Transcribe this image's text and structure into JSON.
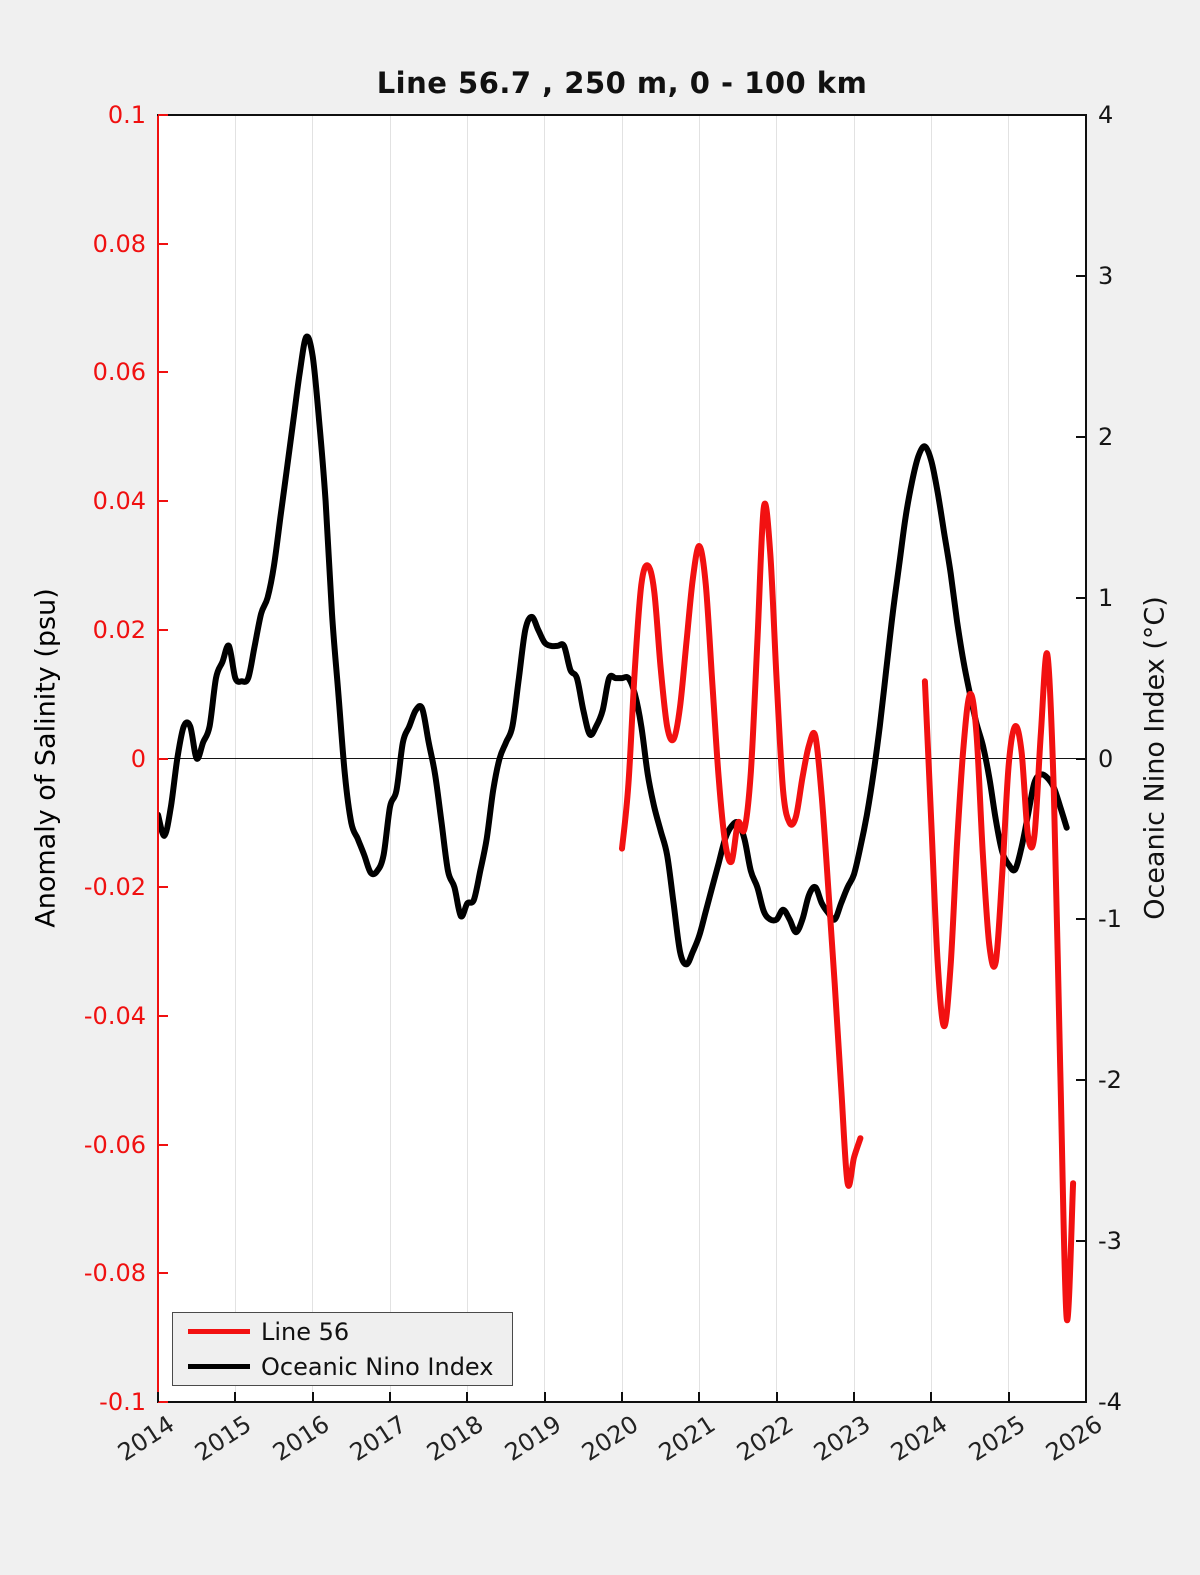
{
  "chart_data": {
    "type": "line",
    "title": "Line 56.7 , 250 m, 0 - 100 km",
    "x_axis": {
      "min": 2014,
      "max": 2026,
      "tick_values": [
        2014,
        2015,
        2016,
        2017,
        2018,
        2019,
        2020,
        2021,
        2022,
        2023,
        2024,
        2025,
        2026
      ],
      "tick_labels": [
        "2014",
        "2015",
        "2016",
        "2017",
        "2018",
        "2019",
        "2020",
        "2021",
        "2022",
        "2023",
        "2024",
        "2025",
        "2026"
      ],
      "grid_years": [
        2015,
        2016,
        2017,
        2018,
        2019,
        2020,
        2021,
        2022,
        2023,
        2024,
        2025
      ],
      "grid": true
    },
    "left_y_axis": {
      "label": "Anomaly of Salinity (psu)",
      "color": "#f01010",
      "min": -0.1,
      "max": 0.1,
      "tick_values": [
        0.1,
        0.08,
        0.06,
        0.04,
        0.02,
        0,
        -0.02,
        -0.04,
        -0.06,
        -0.08,
        -0.1
      ],
      "tick_labels": [
        "0.1",
        "0.08",
        "0.06",
        "0.04",
        "0.02",
        "0",
        "-0.02",
        "-0.04",
        "-0.06",
        "-0.08",
        "-0.1"
      ]
    },
    "right_y_axis": {
      "label": "Oceanic Nino Index (°C)",
      "color": "#000000",
      "min": -4,
      "max": 4,
      "tick_values": [
        4,
        3,
        2,
        1,
        0,
        -1,
        -2,
        -3,
        -4
      ],
      "tick_labels": [
        "4",
        "3",
        "2",
        "1",
        "0",
        "-1",
        "-2",
        "-3",
        "-4"
      ]
    },
    "zero_line": true,
    "grid_visible": "x-only",
    "legend": {
      "position": "bottom-left",
      "entries": [
        {
          "label": "Line 56",
          "color": "#f21111"
        },
        {
          "label": "Oceanic Nino Index",
          "color": "#000000"
        }
      ]
    },
    "series": [
      {
        "name": "Oceanic Nino Index",
        "axis": "right",
        "color": "#000000",
        "width": 6,
        "x_step_months": 1,
        "segments": [
          {
            "x0": 2014.0,
            "values": [
              -0.35,
              -0.48,
              -0.3,
              0.0,
              0.2,
              0.2,
              0.0,
              0.1,
              0.2,
              0.5,
              0.6,
              0.7,
              0.5,
              0.48,
              0.5,
              0.7,
              0.9,
              1.0,
              1.2,
              1.5,
              1.8,
              2.1,
              2.4,
              2.62,
              2.5,
              2.1,
              1.6,
              0.9,
              0.4,
              -0.1,
              -0.4,
              -0.5,
              -0.6,
              -0.71,
              -0.7,
              -0.6,
              -0.3,
              -0.2,
              0.1,
              0.2,
              0.3,
              0.31,
              0.1,
              -0.1,
              -0.4,
              -0.7,
              -0.8,
              -0.98,
              -0.9,
              -0.88,
              -0.7,
              -0.5,
              -0.2,
              0.0,
              0.1,
              0.2,
              0.5,
              0.8,
              0.88,
              0.8,
              0.72,
              0.7,
              0.7,
              0.7,
              0.55,
              0.5,
              0.3,
              0.15,
              0.2,
              0.3,
              0.5,
              0.5,
              0.5,
              0.5,
              0.4,
              0.2,
              -0.1,
              -0.3,
              -0.45,
              -0.6,
              -0.9,
              -1.2,
              -1.28,
              -1.2,
              -1.1,
              -0.95,
              -0.8,
              -0.65,
              -0.5,
              -0.42,
              -0.4,
              -0.5,
              -0.7,
              -0.8,
              -0.95,
              -1.0,
              -1.0,
              -0.94,
              -1.0,
              -1.08,
              -1.0,
              -0.85,
              -0.8,
              -0.9,
              -0.96,
              -1.0,
              -0.9,
              -0.8,
              -0.72,
              -0.55,
              -0.35,
              -0.1,
              0.2,
              0.55,
              0.9,
              1.2,
              1.5,
              1.72,
              1.88,
              1.94,
              1.85,
              1.65,
              1.4,
              1.15,
              0.85,
              0.6,
              0.4,
              0.22,
              0.08,
              -0.12,
              -0.38,
              -0.58,
              -0.66,
              -0.69,
              -0.55,
              -0.35,
              -0.15,
              -0.1,
              -0.12,
              -0.18,
              -0.3,
              -0.43
            ]
          }
        ]
      },
      {
        "name": "Line 56",
        "axis": "left",
        "color": "#f21111",
        "width": 6,
        "x_step_months": 1,
        "segments": [
          {
            "x0": 2020.0,
            "values": [
              -0.014,
              -0.004,
              0.014,
              0.027,
              0.03,
              0.026,
              0.014,
              0.005,
              0.003,
              0.008,
              0.018,
              0.028,
              0.033,
              0.027,
              0.012,
              -0.003,
              -0.013,
              -0.016,
              -0.01,
              -0.011,
              -0.002,
              0.018,
              0.039,
              0.032,
              0.012,
              -0.005,
              -0.01,
              -0.009,
              -0.003,
              0.002,
              0.0035,
              -0.006,
              -0.02,
              -0.035,
              -0.051,
              -0.066,
              -0.062,
              -0.059
            ]
          },
          {
            "x0": 2023.9167,
            "values": [
              0.012,
              -0.01,
              -0.032,
              -0.0416,
              -0.032,
              -0.013,
              0.002,
              0.01,
              0.004,
              -0.015,
              -0.029,
              -0.0316,
              -0.018,
              -0.001,
              0.005,
              0.001,
              -0.012,
              -0.012,
              0.004,
              0.0162,
              -0.005,
              -0.048,
              -0.087,
              -0.066
            ]
          }
        ]
      }
    ]
  }
}
